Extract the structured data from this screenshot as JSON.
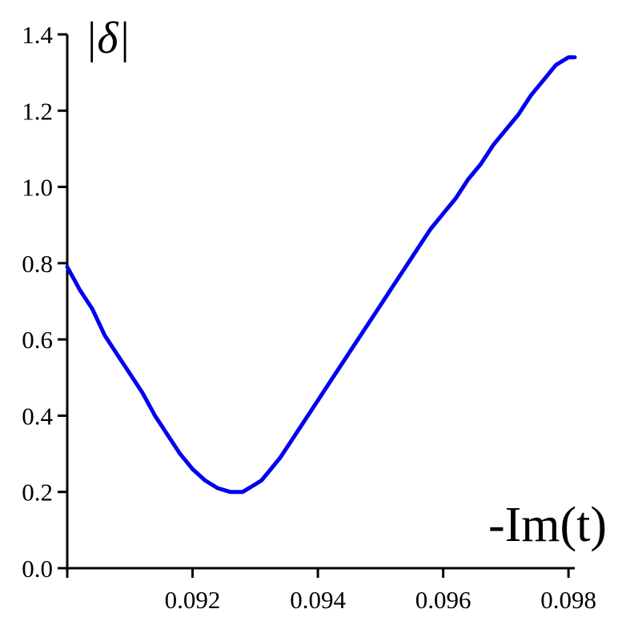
{
  "chart_data": {
    "type": "line",
    "title": "",
    "ylabel": "|δ|",
    "xlabel": "-Im(t)",
    "xlim": [
      0.09,
      0.0981
    ],
    "ylim": [
      0.0,
      1.4
    ],
    "x_ticks": [
      0.092,
      0.094,
      0.096,
      0.098
    ],
    "x_tick_labels": [
      "0.092",
      "0.094",
      "0.096",
      "0.098"
    ],
    "y_ticks": [
      0.0,
      0.2,
      0.4,
      0.6,
      0.8,
      1.0,
      1.2,
      1.4
    ],
    "y_tick_labels": [
      "0.0",
      "0.2",
      "0.4",
      "0.6",
      "0.8",
      "1.0",
      "1.2",
      "1.4"
    ],
    "grid": false,
    "series": [
      {
        "color": "#0000ee",
        "x": [
          0.09,
          0.0902,
          0.0904,
          0.0906,
          0.0908,
          0.091,
          0.0912,
          0.0914,
          0.0916,
          0.0918,
          0.092,
          0.0922,
          0.0924,
          0.0926,
          0.0928,
          0.0929,
          0.093,
          0.0931,
          0.0932,
          0.0934,
          0.0936,
          0.0938,
          0.094,
          0.0942,
          0.0944,
          0.0946,
          0.0948,
          0.095,
          0.0952,
          0.0954,
          0.0956,
          0.0958,
          0.096,
          0.0962,
          0.0964,
          0.0966,
          0.0968,
          0.097,
          0.0972,
          0.0974,
          0.0976,
          0.0978,
          0.098,
          0.0981
        ],
        "y": [
          0.79,
          0.73,
          0.68,
          0.61,
          0.56,
          0.51,
          0.46,
          0.4,
          0.35,
          0.3,
          0.26,
          0.23,
          0.21,
          0.2,
          0.2,
          0.21,
          0.22,
          0.23,
          0.25,
          0.29,
          0.34,
          0.39,
          0.44,
          0.49,
          0.54,
          0.59,
          0.64,
          0.69,
          0.74,
          0.79,
          0.84,
          0.89,
          0.93,
          0.97,
          1.02,
          1.06,
          1.11,
          1.15,
          1.19,
          1.24,
          1.28,
          1.32,
          1.34,
          1.34
        ]
      }
    ]
  }
}
